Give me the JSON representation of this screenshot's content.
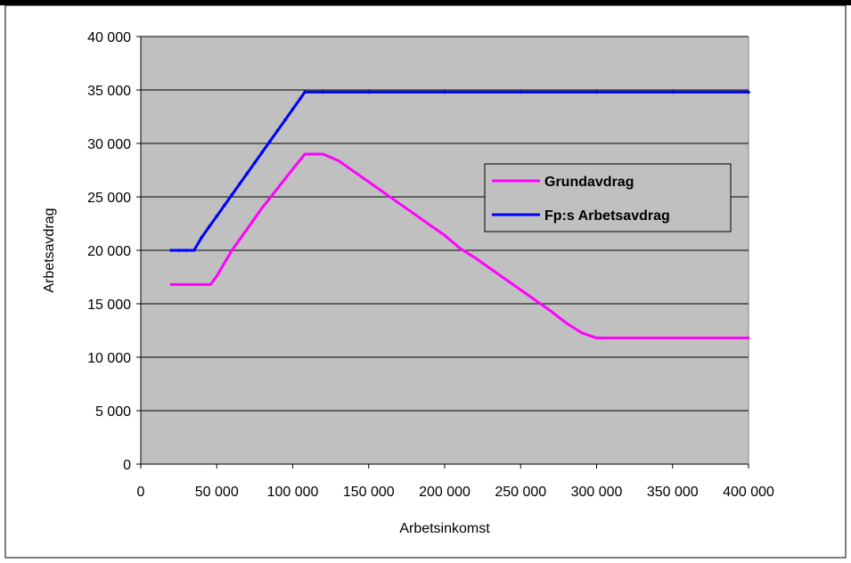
{
  "chart_data": {
    "type": "line",
    "title": "",
    "xlabel": "Arbetsinkomst",
    "ylabel": "Arbetsavdrag",
    "xlim": [
      0,
      400000
    ],
    "ylim": [
      0,
      40000
    ],
    "x_ticks": [
      0,
      50000,
      100000,
      150000,
      200000,
      250000,
      300000,
      350000,
      400000
    ],
    "x_tick_labels": [
      "0",
      "50 000",
      "100 000",
      "150 000",
      "200 000",
      "250 000",
      "300 000",
      "350 000",
      "400 000"
    ],
    "y_ticks": [
      0,
      5000,
      10000,
      15000,
      20000,
      25000,
      30000,
      35000,
      40000
    ],
    "y_tick_labels": [
      "0",
      "5 000",
      "10 000",
      "15 000",
      "20 000",
      "25 000",
      "30 000",
      "35 000",
      "40 000"
    ],
    "grid": "horizontal",
    "plot_background": "#c0c0c0",
    "legend_position": "right",
    "series": [
      {
        "name": "Grundavdrag",
        "color": "#ff00ff",
        "marker": "none",
        "points": [
          [
            20000,
            16800
          ],
          [
            46000,
            16800
          ],
          [
            50000,
            17600
          ],
          [
            60000,
            20000
          ],
          [
            70000,
            22000
          ],
          [
            80000,
            24000
          ],
          [
            90000,
            25800
          ],
          [
            100000,
            27600
          ],
          [
            108000,
            29000
          ],
          [
            120000,
            29000
          ],
          [
            130000,
            28400
          ],
          [
            140000,
            27400
          ],
          [
            150000,
            26400
          ],
          [
            160000,
            25400
          ],
          [
            170000,
            24400
          ],
          [
            180000,
            23400
          ],
          [
            190000,
            22400
          ],
          [
            200000,
            21400
          ],
          [
            210000,
            20200
          ],
          [
            220000,
            19300
          ],
          [
            230000,
            18300
          ],
          [
            240000,
            17300
          ],
          [
            250000,
            16300
          ],
          [
            260000,
            15300
          ],
          [
            270000,
            14300
          ],
          [
            280000,
            13200
          ],
          [
            290000,
            12300
          ],
          [
            300000,
            11800
          ],
          [
            350000,
            11800
          ],
          [
            400000,
            11800
          ]
        ]
      },
      {
        "name": "Fp:s Arbetsavdrag",
        "color": "#0000ff",
        "marker": "dot",
        "points": [
          [
            20000,
            20000
          ],
          [
            25000,
            20000
          ],
          [
            30000,
            20000
          ],
          [
            35000,
            20000
          ],
          [
            40000,
            21200
          ],
          [
            45000,
            22200
          ],
          [
            50000,
            23200
          ],
          [
            55000,
            24200
          ],
          [
            60000,
            25200
          ],
          [
            65000,
            26200
          ],
          [
            70000,
            27200
          ],
          [
            75000,
            28200
          ],
          [
            80000,
            29200
          ],
          [
            85000,
            30200
          ],
          [
            90000,
            31200
          ],
          [
            95000,
            32200
          ],
          [
            100000,
            33200
          ],
          [
            105000,
            34200
          ],
          [
            108000,
            34800
          ],
          [
            120000,
            34800
          ],
          [
            150000,
            34800
          ],
          [
            200000,
            34800
          ],
          [
            250000,
            34800
          ],
          [
            300000,
            34800
          ],
          [
            350000,
            34800
          ],
          [
            400000,
            34800
          ]
        ]
      }
    ]
  }
}
